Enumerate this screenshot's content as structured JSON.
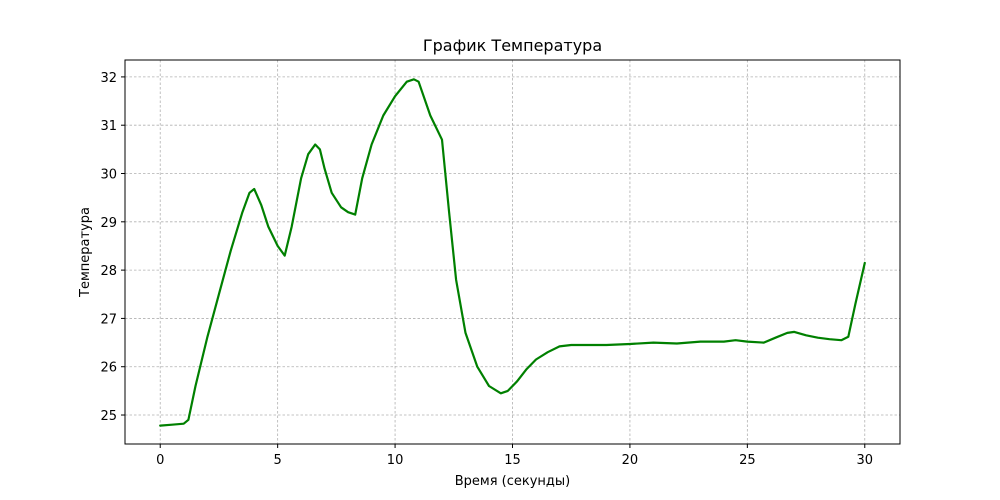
{
  "chart_data": {
    "type": "line",
    "title": "График Температура",
    "xlabel": "Время (секунды)",
    "ylabel": "Температура",
    "xlim": [
      -1.5,
      31.5
    ],
    "ylim": [
      24.4,
      32.35
    ],
    "xticks": [
      0,
      5,
      10,
      15,
      20,
      25,
      30
    ],
    "yticks": [
      25,
      26,
      27,
      28,
      29,
      30,
      31,
      32
    ],
    "grid": true,
    "color": "#008000",
    "series": [
      {
        "x": [
          0,
          0.5,
          1.0,
          1.2,
          1.5,
          2.0,
          2.5,
          3.0,
          3.5,
          3.8,
          4.0,
          4.3,
          4.6,
          5.0,
          5.3,
          5.6,
          6.0,
          6.3,
          6.6,
          6.8,
          7.0,
          7.3,
          7.7,
          8.0,
          8.3,
          8.6,
          9.0,
          9.5,
          10.0,
          10.5,
          10.8,
          11.0,
          11.5,
          12.0,
          12.3,
          12.6,
          13.0,
          13.5,
          14.0,
          14.5,
          14.8,
          15.2,
          15.6,
          16.0,
          16.5,
          17.0,
          17.5,
          18.0,
          19.0,
          20.0,
          21.0,
          22.0,
          23.0,
          24.0,
          24.5,
          25.0,
          25.7,
          26.2,
          26.7,
          27.0,
          27.5,
          28.0,
          28.5,
          29.0,
          29.3,
          29.6,
          30.0
        ],
        "y": [
          24.78,
          24.8,
          24.82,
          24.9,
          25.6,
          26.6,
          27.5,
          28.4,
          29.2,
          29.6,
          29.68,
          29.35,
          28.9,
          28.5,
          28.3,
          28.9,
          29.9,
          30.4,
          30.6,
          30.5,
          30.1,
          29.6,
          29.3,
          29.2,
          29.15,
          29.9,
          30.6,
          31.2,
          31.6,
          31.9,
          31.95,
          31.9,
          31.2,
          30.7,
          29.2,
          27.8,
          26.7,
          26.0,
          25.6,
          25.45,
          25.5,
          25.7,
          25.95,
          26.15,
          26.3,
          26.42,
          26.45,
          26.45,
          26.45,
          26.47,
          26.5,
          26.48,
          26.52,
          26.52,
          26.55,
          26.52,
          26.5,
          26.6,
          26.7,
          26.72,
          26.65,
          26.6,
          26.57,
          26.55,
          26.62,
          27.3,
          28.15
        ]
      }
    ]
  }
}
